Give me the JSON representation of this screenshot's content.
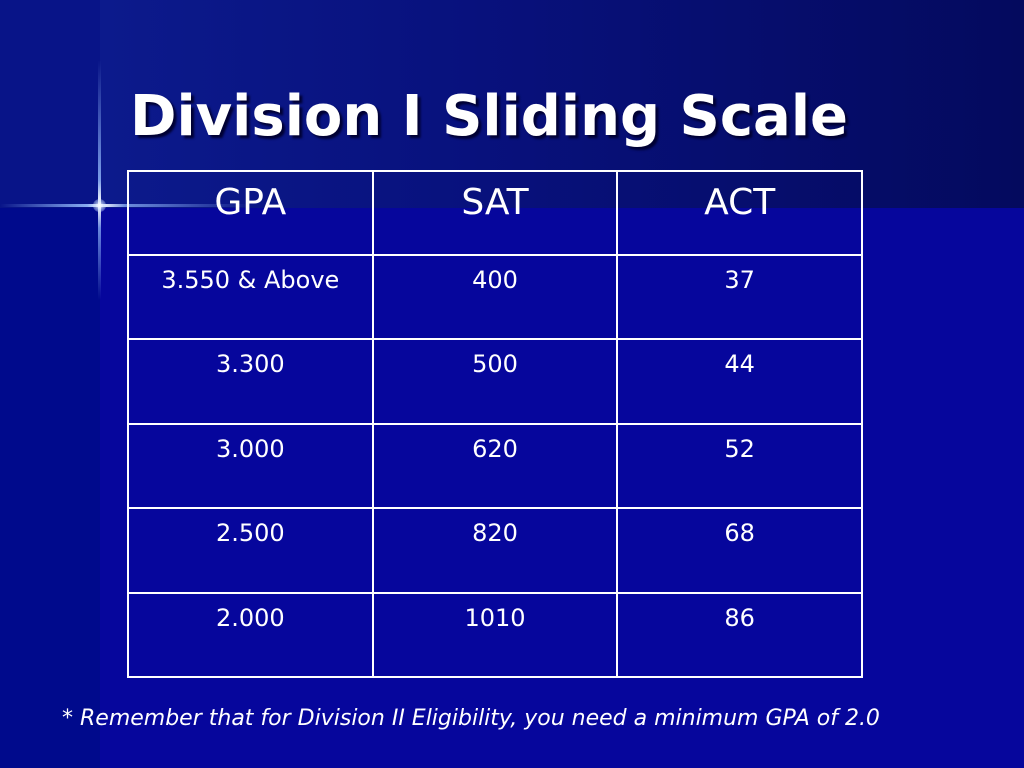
{
  "slide": {
    "title": "Division I Sliding Scale",
    "table": {
      "headers": [
        "GPA",
        "SAT",
        "ACT"
      ],
      "rows": [
        [
          "3.550 & Above",
          "400",
          "37"
        ],
        [
          "3.300",
          "500",
          "44"
        ],
        [
          "3.000",
          "620",
          "52"
        ],
        [
          "2.500",
          "820",
          "68"
        ],
        [
          "2.000",
          "1010",
          "86"
        ]
      ]
    },
    "footnote": {
      "marker": "*",
      "text": "Remember that for Division II Eligibility, you need a minimum GPA of 2.0"
    }
  },
  "colors": {
    "background": "#06069c",
    "text": "#ffffff"
  }
}
